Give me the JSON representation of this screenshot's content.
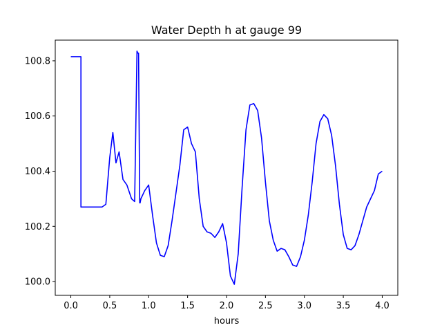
{
  "chart_data": {
    "type": "line",
    "title": "Water Depth h at gauge 99",
    "xlabel": "hours",
    "ylabel": "",
    "xlim": [
      -0.2,
      4.2
    ],
    "ylim": [
      99.95,
      100.875
    ],
    "xticks": [
      0.0,
      0.5,
      1.0,
      1.5,
      2.0,
      2.5,
      3.0,
      3.5,
      4.0
    ],
    "xtick_labels": [
      "0.0",
      "0.5",
      "1.0",
      "1.5",
      "2.0",
      "2.5",
      "3.0",
      "3.5",
      "4.0"
    ],
    "yticks": [
      100.0,
      100.2,
      100.4,
      100.6,
      100.8
    ],
    "ytick_labels": [
      "100.0",
      "100.2",
      "100.4",
      "100.6",
      "100.8"
    ],
    "grid": false,
    "color": "#0000ff",
    "series": [
      {
        "x": [
          0.0,
          0.13,
          0.13,
          0.2,
          0.3,
          0.4,
          0.45,
          0.5,
          0.54,
          0.58,
          0.62,
          0.67,
          0.72,
          0.78,
          0.82,
          0.85,
          0.86,
          0.87,
          0.885,
          0.89,
          0.9,
          0.95,
          1.0,
          1.05,
          1.1,
          1.15,
          1.2,
          1.25,
          1.3,
          1.35,
          1.4,
          1.45,
          1.5,
          1.55,
          1.6,
          1.65,
          1.7,
          1.75,
          1.8,
          1.85,
          1.9,
          1.95,
          2.0,
          2.05,
          2.1,
          2.15,
          2.2,
          2.25,
          2.3,
          2.35,
          2.4,
          2.45,
          2.5,
          2.55,
          2.6,
          2.65,
          2.7,
          2.75,
          2.8,
          2.85,
          2.9,
          2.95,
          3.0,
          3.05,
          3.1,
          3.15,
          3.2,
          3.25,
          3.3,
          3.35,
          3.4,
          3.45,
          3.5,
          3.55,
          3.6,
          3.65,
          3.7,
          3.75,
          3.8,
          3.85,
          3.9,
          3.95,
          4.0
        ],
        "y": [
          100.815,
          100.815,
          100.27,
          100.27,
          100.27,
          100.27,
          100.28,
          100.45,
          100.54,
          100.43,
          100.47,
          100.37,
          100.35,
          100.3,
          100.29,
          100.835,
          100.828,
          100.828,
          100.285,
          100.285,
          100.3,
          100.33,
          100.35,
          100.24,
          100.14,
          100.095,
          100.09,
          100.13,
          100.22,
          100.32,
          100.42,
          100.55,
          100.56,
          100.5,
          100.47,
          100.3,
          100.2,
          100.18,
          100.175,
          100.16,
          100.18,
          100.21,
          100.14,
          100.02,
          99.99,
          100.1,
          100.34,
          100.55,
          100.64,
          100.645,
          100.62,
          100.52,
          100.36,
          100.22,
          100.15,
          100.11,
          100.12,
          100.115,
          100.09,
          100.06,
          100.055,
          100.09,
          100.15,
          100.24,
          100.36,
          100.5,
          100.58,
          100.605,
          100.59,
          100.53,
          100.42,
          100.28,
          100.17,
          100.12,
          100.115,
          100.13,
          100.17,
          100.22,
          100.27,
          100.3,
          100.33,
          100.39,
          100.4
        ]
      }
    ]
  }
}
